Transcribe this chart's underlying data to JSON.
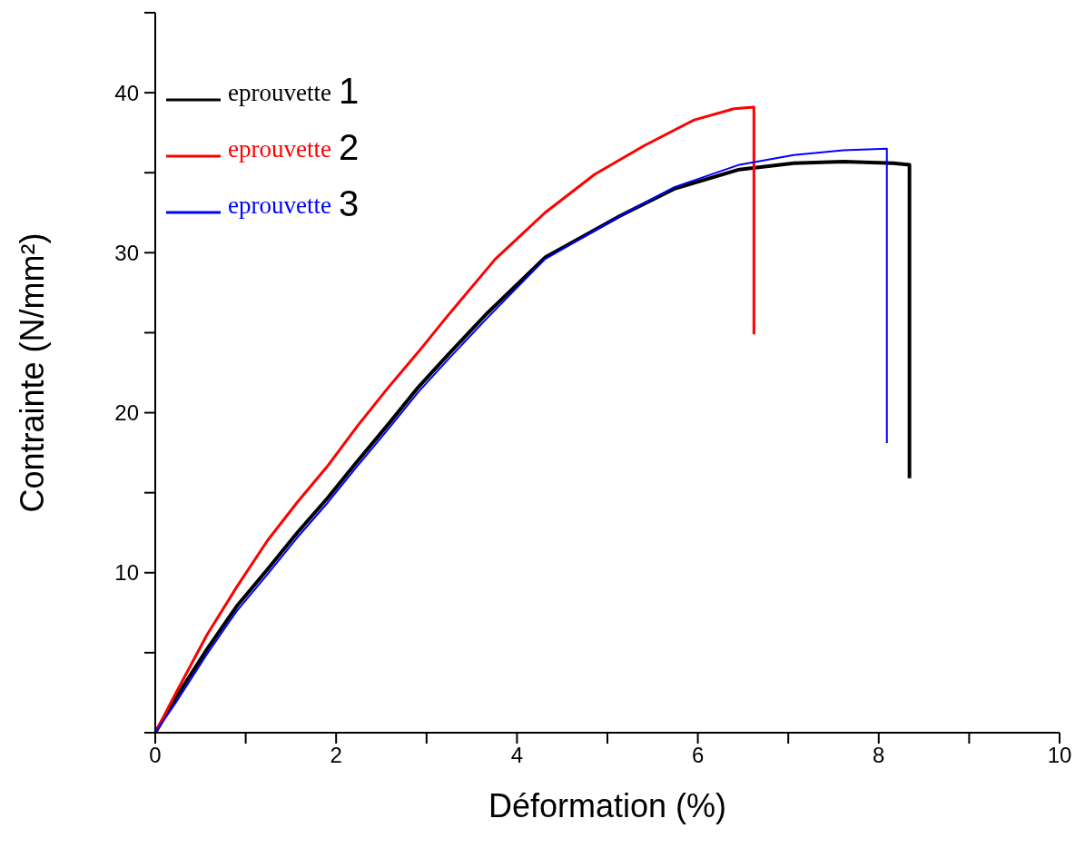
{
  "chart_data": {
    "type": "line",
    "xlabel": "Déformation (%)",
    "ylabel": "Contrainte (N/mm²)",
    "xlim": [
      0,
      10
    ],
    "ylim": [
      0,
      45
    ],
    "xticks": [
      0,
      {
        "value": 1,
        "label": null
      },
      2,
      {
        "value": 3,
        "label": null
      },
      4,
      {
        "value": 5,
        "label": null
      },
      6,
      {
        "value": 7,
        "label": null
      },
      8,
      {
        "value": 9,
        "label": null
      },
      10
    ],
    "yticks": [
      {
        "value": 0,
        "label": null
      },
      {
        "value": 5,
        "label": null
      },
      10,
      {
        "value": 15,
        "label": null
      },
      20,
      {
        "value": 25,
        "label": null
      },
      30,
      {
        "value": 35,
        "label": null
      },
      40,
      {
        "value": 45,
        "label": null
      }
    ],
    "grid": false,
    "legend": "top left",
    "marker": "none",
    "line_style": "solid",
    "series": [
      {
        "name": "eprouvette 1",
        "color": "#000000",
        "x": [
          0,
          0.23,
          0.57,
          0.9,
          1.24,
          1.57,
          1.91,
          2.24,
          2.58,
          2.91,
          3.25,
          3.65,
          4.31,
          5.14,
          5.74,
          6.46,
          7.06,
          7.61,
          8.16,
          8.34,
          8.34
        ],
        "values": [
          0,
          2.2,
          5.2,
          7.9,
          10.2,
          12.5,
          14.7,
          17.0,
          19.3,
          21.6,
          23.7,
          26.1,
          29.7,
          32.3,
          34.0,
          35.2,
          35.6,
          35.7,
          35.6,
          35.5,
          15.9
        ]
      },
      {
        "name": "eprouvette 2",
        "color": "#ff0000",
        "x": [
          0,
          0.23,
          0.57,
          0.9,
          1.24,
          1.57,
          1.91,
          2.24,
          2.58,
          2.91,
          3.21,
          3.76,
          4.31,
          4.86,
          5.41,
          5.96,
          6.4,
          6.62,
          6.62
        ],
        "values": [
          0,
          2.5,
          6.1,
          9.1,
          12.0,
          14.4,
          16.7,
          19.2,
          21.6,
          23.8,
          25.9,
          29.6,
          32.5,
          34.9,
          36.7,
          38.3,
          39.0,
          39.1,
          24.9
        ]
      },
      {
        "name": "eprouvette 3",
        "color": "#0000ff",
        "x": [
          0,
          0.23,
          0.57,
          0.9,
          1.24,
          1.57,
          1.91,
          2.24,
          2.58,
          2.91,
          3.25,
          3.65,
          4.31,
          5.14,
          5.74,
          6.46,
          7.06,
          7.61,
          8.09,
          8.09
        ],
        "values": [
          0,
          1.9,
          4.9,
          7.6,
          9.9,
          12.2,
          14.4,
          16.7,
          19.0,
          21.3,
          23.4,
          25.8,
          29.6,
          32.3,
          34.1,
          35.5,
          36.1,
          36.4,
          36.5,
          18.1
        ]
      }
    ]
  }
}
